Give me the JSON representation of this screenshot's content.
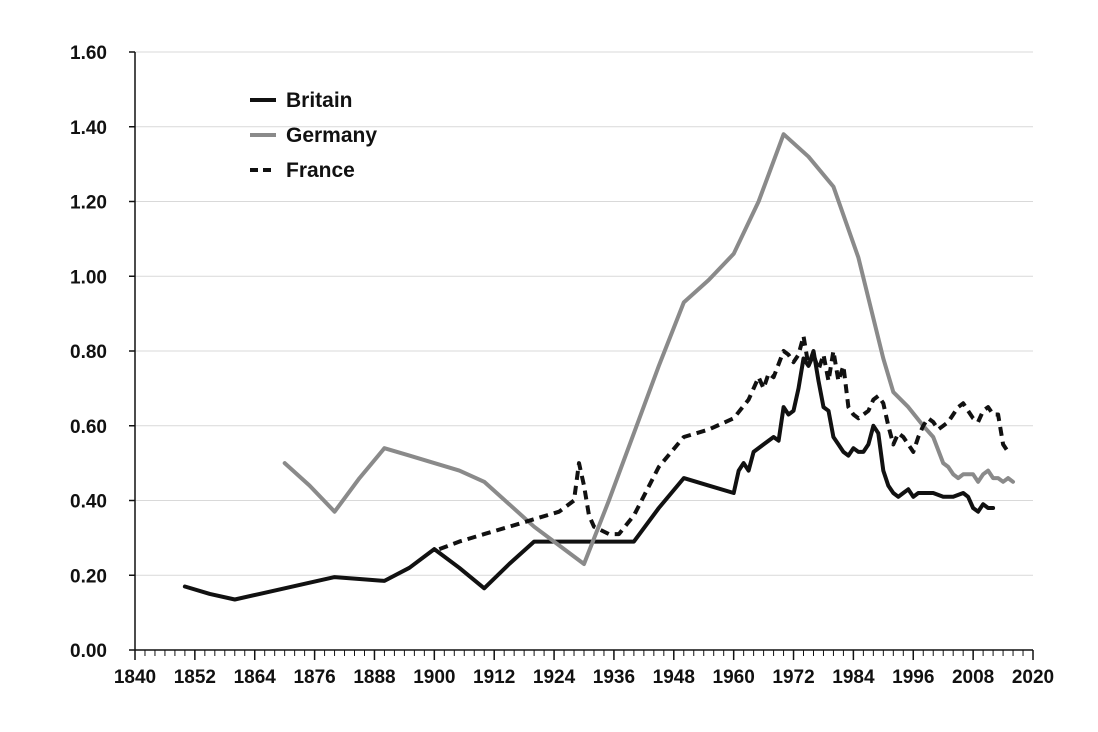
{
  "chart_data": {
    "type": "line",
    "title": "",
    "xlabel": "",
    "ylabel": "",
    "xlim": [
      1840,
      2020
    ],
    "ylim": [
      0,
      1.6
    ],
    "x_ticks": [
      "1840",
      "1852",
      "1864",
      "1876",
      "1888",
      "1900",
      "1912",
      "1924",
      "1936",
      "1948",
      "1960",
      "1972",
      "1984",
      "1996",
      "2008",
      "2020"
    ],
    "y_ticks": [
      "0.00",
      "0.20",
      "0.40",
      "0.60",
      "0.80",
      "1.00",
      "1.20",
      "1.40",
      "1.60"
    ],
    "grid": "horizontal",
    "legend_position": "top-left",
    "series": [
      {
        "name": "Britain",
        "color": "#111111",
        "style": "solid",
        "points": [
          [
            1850,
            0.17
          ],
          [
            1855,
            0.15
          ],
          [
            1860,
            0.135
          ],
          [
            1865,
            0.15
          ],
          [
            1870,
            0.165
          ],
          [
            1875,
            0.18
          ],
          [
            1880,
            0.195
          ],
          [
            1885,
            0.19
          ],
          [
            1890,
            0.185
          ],
          [
            1895,
            0.22
          ],
          [
            1900,
            0.27
          ],
          [
            1905,
            0.22
          ],
          [
            1910,
            0.165
          ],
          [
            1915,
            0.23
          ],
          [
            1920,
            0.29
          ],
          [
            1925,
            0.29
          ],
          [
            1930,
            0.29
          ],
          [
            1935,
            0.29
          ],
          [
            1940,
            0.29
          ],
          [
            1945,
            0.38
          ],
          [
            1950,
            0.46
          ],
          [
            1955,
            0.44
          ],
          [
            1960,
            0.42
          ],
          [
            1961,
            0.48
          ],
          [
            1962,
            0.5
          ],
          [
            1963,
            0.48
          ],
          [
            1964,
            0.53
          ],
          [
            1966,
            0.55
          ],
          [
            1968,
            0.57
          ],
          [
            1969,
            0.56
          ],
          [
            1970,
            0.65
          ],
          [
            1971,
            0.63
          ],
          [
            1972,
            0.64
          ],
          [
            1973,
            0.7
          ],
          [
            1974,
            0.78
          ],
          [
            1975,
            0.76
          ],
          [
            1976,
            0.8
          ],
          [
            1977,
            0.72
          ],
          [
            1978,
            0.65
          ],
          [
            1979,
            0.64
          ],
          [
            1980,
            0.57
          ],
          [
            1981,
            0.55
          ],
          [
            1982,
            0.53
          ],
          [
            1983,
            0.52
          ],
          [
            1984,
            0.54
          ],
          [
            1985,
            0.53
          ],
          [
            1986,
            0.53
          ],
          [
            1987,
            0.55
          ],
          [
            1988,
            0.6
          ],
          [
            1989,
            0.58
          ],
          [
            1990,
            0.48
          ],
          [
            1991,
            0.44
          ],
          [
            1992,
            0.42
          ],
          [
            1993,
            0.41
          ],
          [
            1994,
            0.42
          ],
          [
            1995,
            0.43
          ],
          [
            1996,
            0.41
          ],
          [
            1997,
            0.42
          ],
          [
            1998,
            0.42
          ],
          [
            2000,
            0.42
          ],
          [
            2002,
            0.41
          ],
          [
            2004,
            0.41
          ],
          [
            2006,
            0.42
          ],
          [
            2007,
            0.41
          ],
          [
            2008,
            0.38
          ],
          [
            2009,
            0.37
          ],
          [
            2010,
            0.39
          ],
          [
            2011,
            0.38
          ],
          [
            2012,
            0.38
          ]
        ]
      },
      {
        "name": "Germany",
        "color": "#8a8a8a",
        "style": "solid",
        "points": [
          [
            1870,
            0.5
          ],
          [
            1875,
            0.44
          ],
          [
            1880,
            0.37
          ],
          [
            1885,
            0.46
          ],
          [
            1890,
            0.54
          ],
          [
            1895,
            0.52
          ],
          [
            1900,
            0.5
          ],
          [
            1905,
            0.48
          ],
          [
            1910,
            0.45
          ],
          [
            1915,
            0.39
          ],
          [
            1920,
            0.33
          ],
          [
            1925,
            0.28
          ],
          [
            1930,
            0.23
          ],
          [
            1935,
            0.4
          ],
          [
            1940,
            0.58
          ],
          [
            1945,
            0.76
          ],
          [
            1950,
            0.93
          ],
          [
            1955,
            0.99
          ],
          [
            1960,
            1.06
          ],
          [
            1965,
            1.2
          ],
          [
            1970,
            1.38
          ],
          [
            1975,
            1.32
          ],
          [
            1980,
            1.24
          ],
          [
            1985,
            1.05
          ],
          [
            1990,
            0.78
          ],
          [
            1992,
            0.69
          ],
          [
            1995,
            0.65
          ],
          [
            1998,
            0.6
          ],
          [
            2000,
            0.57
          ],
          [
            2002,
            0.5
          ],
          [
            2003,
            0.49
          ],
          [
            2004,
            0.47
          ],
          [
            2005,
            0.46
          ],
          [
            2006,
            0.47
          ],
          [
            2008,
            0.47
          ],
          [
            2009,
            0.45
          ],
          [
            2010,
            0.47
          ],
          [
            2011,
            0.48
          ],
          [
            2012,
            0.46
          ],
          [
            2013,
            0.46
          ],
          [
            2014,
            0.45
          ],
          [
            2015,
            0.46
          ],
          [
            2016,
            0.45
          ]
        ]
      },
      {
        "name": "France",
        "color": "#111111",
        "style": "dashed",
        "points": [
          [
            1901,
            0.27
          ],
          [
            1905,
            0.29
          ],
          [
            1910,
            0.31
          ],
          [
            1915,
            0.33
          ],
          [
            1920,
            0.35
          ],
          [
            1925,
            0.37
          ],
          [
            1928,
            0.4
          ],
          [
            1929,
            0.5
          ],
          [
            1930,
            0.44
          ],
          [
            1931,
            0.36
          ],
          [
            1932,
            0.33
          ],
          [
            1935,
            0.31
          ],
          [
            1937,
            0.31
          ],
          [
            1940,
            0.36
          ],
          [
            1945,
            0.49
          ],
          [
            1950,
            0.57
          ],
          [
            1955,
            0.59
          ],
          [
            1960,
            0.62
          ],
          [
            1963,
            0.67
          ],
          [
            1965,
            0.73
          ],
          [
            1966,
            0.7
          ],
          [
            1967,
            0.74
          ],
          [
            1968,
            0.73
          ],
          [
            1970,
            0.8
          ],
          [
            1971,
            0.79
          ],
          [
            1972,
            0.77
          ],
          [
            1973,
            0.79
          ],
          [
            1974,
            0.84
          ],
          [
            1975,
            0.76
          ],
          [
            1976,
            0.79
          ],
          [
            1977,
            0.75
          ],
          [
            1978,
            0.79
          ],
          [
            1979,
            0.72
          ],
          [
            1980,
            0.8
          ],
          [
            1981,
            0.72
          ],
          [
            1982,
            0.76
          ],
          [
            1983,
            0.65
          ],
          [
            1984,
            0.63
          ],
          [
            1985,
            0.62
          ],
          [
            1986,
            0.63
          ],
          [
            1987,
            0.64
          ],
          [
            1988,
            0.67
          ],
          [
            1989,
            0.68
          ],
          [
            1990,
            0.66
          ],
          [
            1991,
            0.6
          ],
          [
            1992,
            0.55
          ],
          [
            1993,
            0.58
          ],
          [
            1994,
            0.57
          ],
          [
            1995,
            0.55
          ],
          [
            1996,
            0.53
          ],
          [
            1997,
            0.57
          ],
          [
            1998,
            0.6
          ],
          [
            1999,
            0.62
          ],
          [
            2000,
            0.61
          ],
          [
            2001,
            0.59
          ],
          [
            2002,
            0.6
          ],
          [
            2003,
            0.61
          ],
          [
            2004,
            0.63
          ],
          [
            2005,
            0.65
          ],
          [
            2006,
            0.66
          ],
          [
            2007,
            0.64
          ],
          [
            2008,
            0.62
          ],
          [
            2009,
            0.61
          ],
          [
            2010,
            0.64
          ],
          [
            2011,
            0.65
          ],
          [
            2012,
            0.63
          ],
          [
            2013,
            0.63
          ],
          [
            2014,
            0.55
          ],
          [
            2015,
            0.53
          ]
        ]
      }
    ]
  }
}
